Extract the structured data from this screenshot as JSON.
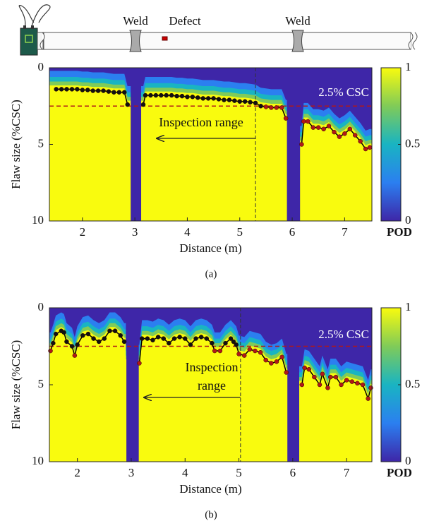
{
  "diagram": {
    "labels": [
      "Weld",
      "Defect",
      "Weld"
    ]
  },
  "chart_data": [
    {
      "type": "pod-map",
      "caption": "(a)",
      "xlabel": "Distance (m)",
      "ylabel": "Flaw size (%CSC)",
      "xlim": [
        1.37,
        7.52
      ],
      "xticks": [
        2,
        3,
        4,
        5,
        6,
        7
      ],
      "ylim": [
        0,
        10
      ],
      "yticks": [
        0,
        5,
        10
      ],
      "y_inverted": true,
      "clim": [
        0,
        1
      ],
      "cticks": [
        0,
        0.5,
        1
      ],
      "clabel": "POD",
      "colormap": [
        "#3e26a8",
        "#2b7ff0",
        "#19b4c2",
        "#80cb58",
        "#f9fb0e"
      ],
      "threshold": 2.5,
      "threshold_label": "2.5% CSC",
      "threshold_color": "#b01818",
      "no_coverage": [
        [
          2.92,
          3.12
        ],
        [
          5.9,
          6.15
        ]
      ],
      "inspection_end": 5.3,
      "arrow_to": 3.42,
      "annotation": [
        "Inspection range"
      ],
      "curve_color": "#000000",
      "point_color": "#111111",
      "below_color": "#b01818",
      "x": [
        1.5,
        1.6,
        1.7,
        1.8,
        1.9,
        2.0,
        2.1,
        2.2,
        2.3,
        2.4,
        2.5,
        2.6,
        2.7,
        2.8,
        2.86,
        null,
        3.16,
        3.2,
        3.3,
        3.4,
        3.5,
        3.6,
        3.7,
        3.8,
        3.9,
        4.0,
        4.1,
        4.2,
        4.3,
        4.4,
        4.5,
        4.6,
        4.7,
        4.8,
        4.9,
        5.0,
        5.1,
        5.2,
        5.3,
        5.4,
        5.5,
        5.6,
        5.7,
        5.8,
        5.88,
        null,
        6.18,
        6.22,
        6.3,
        6.4,
        6.5,
        6.6,
        6.7,
        6.8,
        6.9,
        7.0,
        7.1,
        7.2,
        7.3,
        7.4,
        7.48
      ],
      "y": [
        1.4,
        1.4,
        1.4,
        1.4,
        1.4,
        1.45,
        1.45,
        1.5,
        1.5,
        1.5,
        1.55,
        1.6,
        1.6,
        1.6,
        2.4,
        null,
        2.4,
        1.8,
        1.8,
        1.8,
        1.8,
        1.8,
        1.8,
        1.85,
        1.85,
        1.9,
        1.9,
        1.95,
        2.0,
        2.0,
        2.0,
        2.05,
        2.1,
        2.1,
        2.15,
        2.2,
        2.2,
        2.25,
        2.3,
        2.5,
        2.55,
        2.6,
        2.6,
        2.6,
        3.3,
        null,
        5.0,
        3.5,
        3.5,
        3.9,
        3.9,
        4.0,
        3.8,
        4.2,
        4.5,
        4.3,
        4.0,
        4.4,
        4.8,
        5.3,
        5.2
      ]
    },
    {
      "type": "pod-map",
      "caption": "(b)",
      "xlabel": "Distance (m)",
      "ylabel": "Flaw size (%CSC)",
      "xlim": [
        1.48,
        7.47
      ],
      "xticks": [
        2,
        3,
        4,
        5,
        6,
        7
      ],
      "ylim": [
        0,
        10
      ],
      "yticks": [
        0,
        5,
        10
      ],
      "y_inverted": true,
      "clim": [
        0,
        1
      ],
      "cticks": [
        0,
        0.5,
        1
      ],
      "clabel": "POD",
      "colormap": [
        "#3e26a8",
        "#2b7ff0",
        "#19b4c2",
        "#80cb58",
        "#f9fb0e"
      ],
      "threshold": 2.5,
      "threshold_label": "2.5% CSC",
      "threshold_color": "#b01818",
      "no_coverage": [
        [
          2.91,
          3.14
        ],
        [
          5.9,
          6.12
        ]
      ],
      "inspection_end": 5.03,
      "arrow_to": 3.24,
      "annotation": [
        "Inspection",
        "range"
      ],
      "curve_color": "#000000",
      "point_color": "#111111",
      "below_color": "#b01818",
      "x": [
        1.5,
        1.55,
        1.6,
        1.7,
        1.75,
        1.8,
        1.9,
        1.95,
        2.0,
        2.1,
        2.2,
        2.3,
        2.4,
        2.5,
        2.6,
        2.7,
        2.8,
        2.87,
        null,
        3.15,
        3.2,
        3.3,
        3.4,
        3.5,
        3.6,
        3.7,
        3.8,
        3.9,
        4.0,
        4.1,
        4.2,
        4.3,
        4.4,
        4.5,
        4.55,
        4.65,
        4.75,
        4.85,
        4.9,
        4.95,
        5.0,
        5.1,
        5.2,
        5.3,
        5.4,
        5.5,
        5.6,
        5.7,
        5.8,
        5.88,
        null,
        6.17,
        6.22,
        6.3,
        6.4,
        6.5,
        6.55,
        6.65,
        6.7,
        6.8,
        6.9,
        7.0,
        7.1,
        7.2,
        7.3,
        7.4,
        7.45
      ],
      "y": [
        2.8,
        2.3,
        1.7,
        1.5,
        1.6,
        2.2,
        2.5,
        3.1,
        2.4,
        1.8,
        1.7,
        2.0,
        2.2,
        2.0,
        1.5,
        1.5,
        1.8,
        2.2,
        null,
        3.6,
        2.0,
        2.0,
        2.1,
        1.9,
        2.0,
        2.3,
        2.0,
        1.9,
        2.0,
        2.4,
        2.0,
        1.9,
        2.0,
        2.3,
        2.8,
        2.8,
        2.3,
        2.0,
        2.2,
        2.4,
        3.0,
        3.1,
        2.7,
        2.8,
        2.9,
        3.4,
        3.6,
        3.5,
        3.2,
        4.2,
        null,
        5.0,
        3.9,
        4.0,
        4.5,
        5.0,
        4.3,
        5.2,
        4.5,
        4.5,
        5.0,
        4.7,
        4.8,
        4.9,
        5.0,
        5.9,
        5.2
      ]
    }
  ]
}
